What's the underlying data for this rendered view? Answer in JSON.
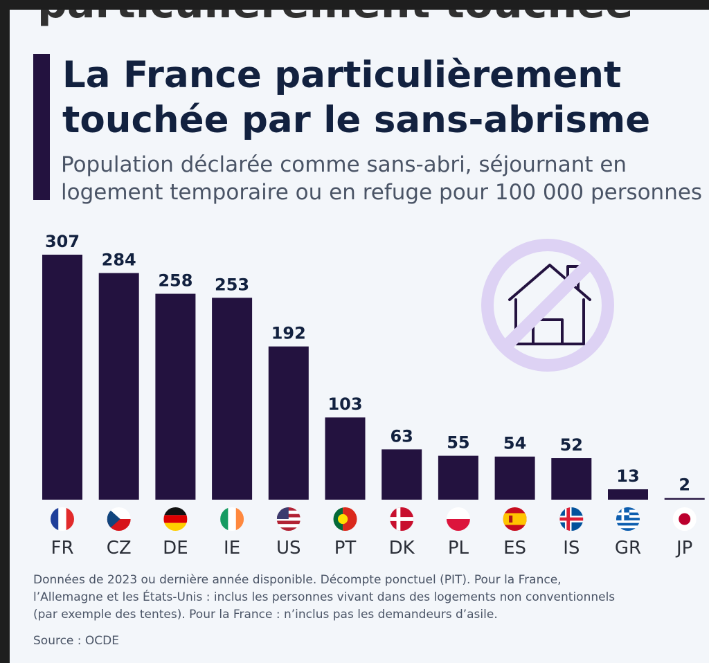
{
  "background_text": "particulièrement touchée",
  "title": "La France particulièrement touchée par le sans-abrisme",
  "subtitle_line1": "Population déclarée comme sans-abri, séjournant en",
  "subtitle_line2": "logement temporaire ou en refuge pour 100 000 personnes",
  "footnote_line1": "Données de 2023 ou dernière année disponible. Décompte ponctuel (PIT). Pour la France,",
  "footnote_line2": "l’Allemagne et les États-Unis : inclus les personnes vivant dans des logements non conventionnels",
  "footnote_line3": "(par exemple des tentes). Pour la France : n’inclus pas les demandeurs d’asile.",
  "source": "Source : OCDE",
  "colors": {
    "bar": "#23123f",
    "icon": "#ddd2f4",
    "title": "#12213f",
    "text": "#4a5466"
  },
  "icon": "no-house-icon",
  "chart_data": {
    "type": "bar",
    "title": "La France particulièrement touchée par le sans-abrisme",
    "subtitle": "Population déclarée comme sans-abri, séjournant en logement temporaire ou en refuge pour 100 000 personnes",
    "categories": [
      "FR",
      "CZ",
      "DE",
      "IE",
      "US",
      "PT",
      "DK",
      "PL",
      "ES",
      "IS",
      "GR",
      "JP"
    ],
    "values": [
      307,
      284,
      258,
      253,
      192,
      103,
      63,
      55,
      54,
      52,
      13,
      2
    ],
    "ylim": [
      0,
      307
    ],
    "xlabel": "",
    "ylabel": "",
    "grid": false,
    "legend": "none",
    "flags": [
      "fr-flag-icon",
      "cz-flag-icon",
      "de-flag-icon",
      "ie-flag-icon",
      "us-flag-icon",
      "pt-flag-icon",
      "dk-flag-icon",
      "pl-flag-icon",
      "es-flag-icon",
      "is-flag-icon",
      "gr-flag-icon",
      "jp-flag-icon"
    ]
  }
}
